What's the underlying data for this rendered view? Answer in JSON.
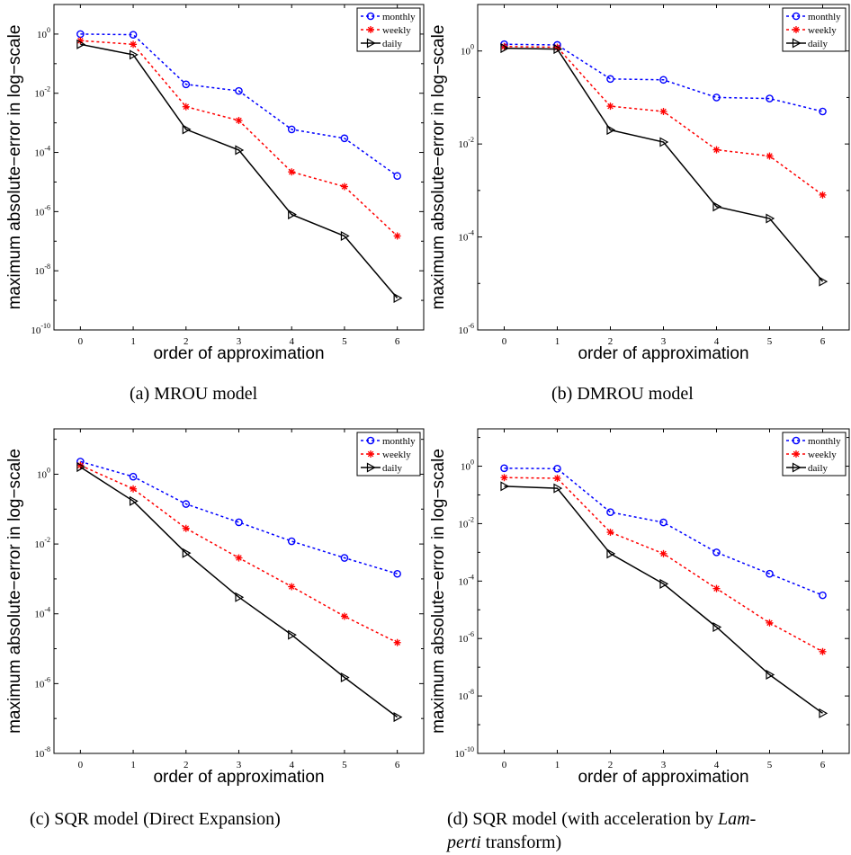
{
  "chart_data": [
    {
      "type": "line",
      "caption": "(a) MROU model",
      "xlabel": "order of approximation",
      "ylabel": "maximum absolute−error in log−scale",
      "x": [
        0,
        1,
        2,
        3,
        4,
        5,
        6
      ],
      "xlim": [
        -0.5,
        6.5
      ],
      "ylim_exp": [
        -10,
        1
      ],
      "yscale": "log",
      "ytick_exps": [
        -10,
        -8,
        -6,
        -4,
        -2,
        0
      ],
      "legend_position": "top-right",
      "series": [
        {
          "name": "monthly",
          "values": [
            1.0,
            0.95,
            0.02,
            0.012,
            0.0006,
            0.0003,
            1.6e-05
          ],
          "color": "#0000ff",
          "marker": "circle",
          "dash": "dashed"
        },
        {
          "name": "weekly",
          "values": [
            0.6,
            0.45,
            0.0035,
            0.0012,
            2.2e-05,
            7e-06,
            1.5e-07
          ],
          "color": "#ff0000",
          "marker": "star",
          "dash": "dashed"
        },
        {
          "name": "daily",
          "values": [
            0.45,
            0.2,
            0.0006,
            0.00012,
            8e-07,
            1.5e-07,
            1.2e-09
          ],
          "color": "#000000",
          "marker": "triangle-right",
          "dash": "solid"
        }
      ]
    },
    {
      "type": "line",
      "caption": "(b) DMROU model",
      "xlabel": "order of approximation",
      "ylabel": "maximum absolute−error in log−scale",
      "x": [
        0,
        1,
        2,
        3,
        4,
        5,
        6
      ],
      "xlim": [
        -0.5,
        6.5
      ],
      "ylim_exp": [
        -6,
        1
      ],
      "yscale": "log",
      "ytick_exps": [
        -6,
        -4,
        -2,
        0
      ],
      "legend_position": "top-right",
      "series": [
        {
          "name": "monthly",
          "values": [
            1.4,
            1.35,
            0.25,
            0.24,
            0.1,
            0.095,
            0.05
          ],
          "color": "#0000ff",
          "marker": "circle",
          "dash": "dashed"
        },
        {
          "name": "weekly",
          "values": [
            1.25,
            1.2,
            0.065,
            0.05,
            0.0075,
            0.0055,
            0.0008
          ],
          "color": "#ff0000",
          "marker": "star",
          "dash": "dashed"
        },
        {
          "name": "daily",
          "values": [
            1.15,
            1.1,
            0.02,
            0.011,
            0.00045,
            0.00025,
            1.1e-05
          ],
          "color": "#000000",
          "marker": "triangle-right",
          "dash": "solid"
        }
      ]
    },
    {
      "type": "line",
      "caption": "(c) SQR model (Direct Expansion)",
      "xlabel": "order of approximation",
      "ylabel": "maximum absolute−error in log−scale",
      "x": [
        0,
        1,
        2,
        3,
        4,
        5,
        6
      ],
      "xlim": [
        -0.5,
        6.5
      ],
      "ylim_exp": [
        -8,
        1.3
      ],
      "yscale": "log",
      "ytick_exps": [
        -8,
        -6,
        -4,
        -2,
        0
      ],
      "legend_position": "top-right",
      "series": [
        {
          "name": "monthly",
          "values": [
            2.3,
            0.85,
            0.14,
            0.042,
            0.012,
            0.004,
            0.0014
          ],
          "color": "#0000ff",
          "marker": "circle",
          "dash": "dashed"
        },
        {
          "name": "weekly",
          "values": [
            1.8,
            0.38,
            0.028,
            0.004,
            0.0006,
            8.5e-05,
            1.5e-05
          ],
          "color": "#ff0000",
          "marker": "star",
          "dash": "dashed"
        },
        {
          "name": "daily",
          "values": [
            1.6,
            0.17,
            0.0055,
            0.0003,
            2.5e-05,
            1.5e-06,
            1.1e-07
          ],
          "color": "#000000",
          "marker": "triangle-right",
          "dash": "solid"
        }
      ]
    },
    {
      "type": "line",
      "caption_parts": [
        "(d) SQR model (with acceleration by ",
        "Lam-",
        "perti",
        " transform)"
      ],
      "xlabel": "order of approximation",
      "ylabel": "maximum absolute−error in log−scale",
      "x": [
        0,
        1,
        2,
        3,
        4,
        5,
        6
      ],
      "xlim": [
        -0.5,
        6.5
      ],
      "ylim_exp": [
        -10,
        1.3
      ],
      "yscale": "log",
      "ytick_exps": [
        -10,
        -8,
        -6,
        -4,
        -2,
        0
      ],
      "legend_position": "top-right",
      "series": [
        {
          "name": "monthly",
          "values": [
            0.85,
            0.82,
            0.025,
            0.011,
            0.001,
            0.00018,
            3.2e-05
          ],
          "color": "#0000ff",
          "marker": "circle",
          "dash": "dashed"
        },
        {
          "name": "weekly",
          "values": [
            0.4,
            0.38,
            0.005,
            0.0009,
            5.5e-05,
            3.5e-06,
            3.5e-07
          ],
          "color": "#ff0000",
          "marker": "star",
          "dash": "dashed"
        },
        {
          "name": "daily",
          "values": [
            0.2,
            0.17,
            0.0009,
            8e-05,
            2.5e-06,
            5.5e-08,
            2.5e-09
          ],
          "color": "#000000",
          "marker": "triangle-right",
          "dash": "solid"
        }
      ]
    }
  ]
}
